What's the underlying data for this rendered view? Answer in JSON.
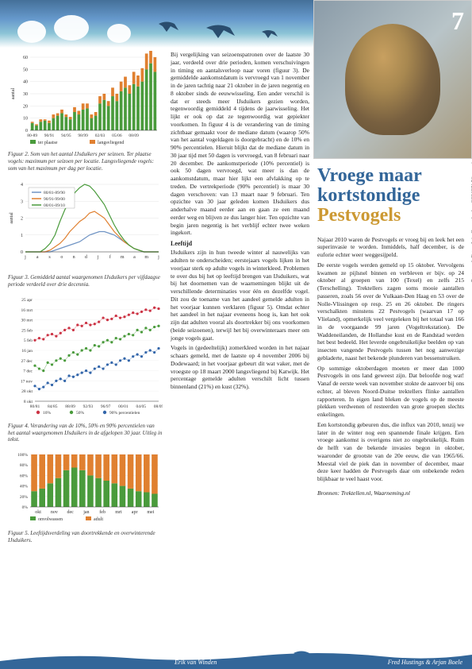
{
  "page_number": "7",
  "vertical_credit": "Pestvogel. Foto: Arie Ouwerkerk",
  "vertical_journal": "SOVON-Nieuws jaargang 23 (2010) nr 4",
  "article": {
    "title_line1": "Vroege maar",
    "title_line2": "kortstondige",
    "title_line3": "Pestvogels",
    "body1": "Najaar 2010 waren de Pestvogels er vroeg bij en leek het een superinvasie te worden. Inmiddels, half december, is de euforie echter weer weggesijpeld.",
    "body2": "De eerste vogels werden gemeld op 15 oktober. Vervolgens kwamen ze pijlsnel binnen en verbleven er bijv. op 24 oktober al groepen van 100 (Texel) en zelfs 215 (Terschelling). Trektellers zagen soms mooie aantallen passeren, zoals 56 over de Vulkaan-Den Haag en 53 over de Nolle-Vlissingen op resp. 25 en 26 oktober. De ringers verschalkten minstens 22 Pestvogels (waarvan 17 op Vlieland), opmerkelijk veel vergeleken bij het totaal van 166 in de voorgaande 99 jaren (Vogeltrekstation). De Waddeneilanden, de Hollandse kust en de Randstad werden het best bedeeld. Het leverde ongebruikelijke beelden op van insecten vangende Pestvogels tussen het nog aanwezige gebladerte, naast het bekende plunderen van bessenstruiken.",
    "body3": "Op sommige oktoberdagen moeten er meer dan 1000 Pestvogels in ons land geweest zijn. Dat beloofde nog wat! Vanaf de eerste week van november stokte de aanvoer bij ons echter, al bleven Noord-Duitse trektellers flinke aantallen rapporteren. In eigen land bleken de vogels op de meeste plekken verdwenen of resteerden van grote groepen slechts enkelingen.",
    "body4": "Een kortstondig gebeuren dus, die influx van 2010, tenzij we later in de winter nog een spannende finale krijgen. Een vroege aankomst is overigens niet zo ongebruikelijk. Ruim de helft van de bekende invasies begon in oktober, waaronder de grootste van de 20e eeuw, die van 1965/66. Meestal viel de piek dan in november of december, maar deze keer hadden de Pestvogels daar om onbekende reden blijkbaar te veel haast voor.",
    "sources": "Bronnen: Trektellen.nl, Waarneming.nl"
  },
  "mid_column": {
    "p1": "Bij vergelijking van seizoenspatronen over de laatste 30 jaar, verdeeld over drie perioden, komen verschuivingen in timing en aantalsverloop naar voren (figuur 3). De gemiddelde aankomstdatum is vervroegd van 1 november in de jaren tachtig naar 21 oktober in de jaren negentig en 8 oktober sinds de eeuwwisseling. Een ander verschil is dat er steeds meer IJsduikers gezien worden, tegenwoordig gemiddeld 4 tijdens de jaarwisseling. Het lijkt er ook op dat ze tegenwoordig wat gepiekter voorkomen. In figuur 4 is de verandering van de timing zichtbaar gemaakt voor de mediane datum (waarop 50% van het aantal vogeldagen is doorgebracht) en de 10% en 90% percentielen. Hieruit blijkt dat de mediane datum in 30 jaar tijd met 50 dagen is vervroegd, van 8 februari naar 20 december. De aankomstperiode (10% percentiel) is ook 50 dagen vervroegd, wat meer is dan de aankomstdatum, maar hier lijkt een afvlakking op te treden. De vertrekperiode (90% percentiel) is maar 30 dagen verschoven: van 13 maart naar 9 februari. Ten opzichte van 30 jaar geleden komen IJsduikers dus anderhalve maand eerder aan en gaan ze een maand eerder weg en blijven ze dus langer hier. Ten opzichte van begin jaren negentig is het verblijf echter twee weken ingekort.",
    "head1": "Leeftijd",
    "p2": "IJsduikers zijn in hun tweede winter al nauwelijks van adulten te onderscheiden; eerstejaars vogels lijken in het voorjaar sterk op adulte vogels in winterkleed. Problemen te over dus bij het op leeftijd brengen van IJsduikers, wat bij het doornemen van de waarnemingen blijkt uit de verschillende determinaties voor één en dezelfde vogel. Dit zou de toename van het aandeel gemelde adulten in het voorjaar kunnen verklaren (figuur 5). Omdat echter het aandeel in het najaar eveneens hoog is, kan het ook zijn dat adulten vooral als doortrekker bij ons voorkomen (beide seizoenen), terwijl het bij overwinteraars meer om jonge vogels gaat.",
    "p3": "Vogels in (gedeeltelijk) zomerkleed worden in het najaar schaars gemeld, met de laatste op 4 november 2006 bij Dodewaard; in het voorjaar gebeurt dit wat vaker, met de vroegste op 18 maart 2000 langsvliegend bij Katwijk. Het percentage gemelde adulten verschilt licht tussen binnenland (21%) en kust (32%)."
  },
  "fig2": {
    "caption": "Figuur 2. Som van het aantal IJsduikers per seizoen. Ter plaatse vogels: maximum per seizoen per locatie. Langsvliegende vogels: som van het maximum per dag per locatie.",
    "ylabel": "aantal",
    "ylim": [
      0,
      60
    ],
    "ytick": 10,
    "xlabels": [
      "80-89",
      "90/91",
      "94/95",
      "98/99",
      "02/03",
      "05/06",
      "08/09"
    ],
    "series": [
      {
        "name": "ter plaatse",
        "color": "#4a9b3c",
        "values": [
          6,
          4,
          7,
          8,
          6,
          10,
          12,
          14,
          11,
          9,
          15,
          13,
          17,
          18,
          10,
          12,
          22,
          25,
          20,
          28,
          24,
          32,
          35,
          30,
          38,
          36,
          40,
          50,
          55,
          48
        ]
      },
      {
        "name": "langsvliegend",
        "color": "#e08030",
        "values": [
          1,
          1,
          2,
          1,
          2,
          3,
          2,
          3,
          2,
          2,
          4,
          3,
          5,
          4,
          3,
          3,
          6,
          5,
          4,
          7,
          6,
          8,
          9,
          7,
          10,
          9,
          11,
          13,
          14,
          12
        ]
      }
    ],
    "legend": [
      {
        "label": "ter plaatse",
        "color": "#4a9b3c"
      },
      {
        "label": "langsvliegend",
        "color": "#e08030"
      }
    ]
  },
  "fig3": {
    "caption": "Figuur 3. Gemiddeld aantal waargenomen IJsduikers per vijfdaagse periode verdeeld over drie decennia.",
    "ylabel": "aantal",
    "ylim": [
      0,
      4
    ],
    "ytick": 1,
    "xlabels": [
      "j",
      "a",
      "s",
      "o",
      "n",
      "d",
      "j",
      "f",
      "m",
      "a",
      "m",
      "j"
    ],
    "legend": [
      {
        "label": "80/81-89/90",
        "color": "#7094c4"
      },
      {
        "label": "90/91-99/00",
        "color": "#e08030"
      },
      {
        "label": "00/01-09/10",
        "color": "#4a9b3c"
      }
    ],
    "lines": [
      {
        "color": "#7094c4",
        "pts": [
          0,
          0,
          0,
          0,
          0,
          0,
          0.1,
          0.2,
          0.3,
          0.4,
          0.5,
          0.6,
          0.8,
          1.0,
          1.1,
          1.2,
          1.2,
          1.1,
          1.0,
          0.8,
          0.6,
          0.4,
          0.2,
          0.1,
          0,
          0,
          0,
          0
        ]
      },
      {
        "color": "#e08030",
        "pts": [
          0,
          0,
          0,
          0,
          0,
          0.1,
          0.3,
          0.5,
          0.8,
          1.2,
          1.5,
          1.8,
          2.0,
          2.3,
          2.4,
          2.2,
          2.0,
          1.6,
          1.2,
          0.9,
          0.6,
          0.4,
          0.2,
          0.1,
          0,
          0,
          0,
          0
        ]
      },
      {
        "color": "#4a9b3c",
        "pts": [
          0,
          0,
          0,
          0,
          0.2,
          0.5,
          1.0,
          1.8,
          2.5,
          3.0,
          3.5,
          3.8,
          4.0,
          3.9,
          3.6,
          3.2,
          2.8,
          2.2,
          1.6,
          1.1,
          0.7,
          0.4,
          0.2,
          0.1,
          0,
          0,
          0,
          0
        ]
      }
    ]
  },
  "fig4": {
    "caption": "Figuur 4. Verandering van de 10%, 50% en 90% percentielen van het aantal waargenomen IJsduikers in de afgelopen 30 jaar. Uitleg in tekst.",
    "ylabels": [
      "25 apr",
      "16 mrt",
      "30 mrt",
      "25 feb",
      "5 feb",
      "16 jan",
      "27 dec",
      "7 dec",
      "17 nov",
      "28 okt",
      "8 okt"
    ],
    "xlabels": [
      "80/81",
      "84/85",
      "88/89",
      "92/93",
      "96/97",
      "00/01",
      "04/05",
      "08/09"
    ],
    "legend": [
      {
        "label": "10%",
        "color": "#cc3344"
      },
      {
        "label": "50%",
        "color": "#4a9b3c"
      },
      {
        "label": "90% percentielen",
        "color": "#3366aa"
      }
    ],
    "series": [
      {
        "color": "#cc3344",
        "pts": [
          4,
          3.8,
          3.9,
          3.5,
          3.4,
          3.6,
          3.3,
          3.0,
          2.8,
          3.0,
          2.5,
          2.6,
          2.3,
          2.5,
          2.4,
          2.2,
          1.8,
          2.0,
          1.9,
          1.6,
          1.8,
          1.7,
          1.5,
          1.3,
          1.4,
          1.2,
          1.0,
          1.1,
          0.8,
          0.9
        ]
      },
      {
        "color": "#4a9b3c",
        "pts": [
          6.5,
          6.8,
          7.0,
          6.2,
          6.4,
          6.0,
          5.8,
          6.0,
          5.5,
          5.2,
          5.4,
          5.0,
          4.8,
          5.0,
          4.5,
          4.6,
          4.2,
          4.0,
          4.2,
          3.8,
          3.9,
          3.6,
          3.4,
          3.5,
          3.0,
          3.2,
          2.8,
          3.0,
          2.7,
          2.6
        ]
      },
      {
        "color": "#3366aa",
        "pts": [
          8.5,
          8.8,
          8.6,
          8.2,
          8.4,
          8.0,
          7.8,
          8.0,
          7.5,
          7.6,
          7.4,
          7.2,
          7.0,
          7.2,
          6.8,
          6.6,
          6.8,
          6.4,
          6.2,
          6.4,
          6.0,
          5.8,
          6.0,
          5.6,
          5.4,
          5.6,
          5.2,
          5.0,
          5.2,
          4.8
        ]
      }
    ]
  },
  "fig5": {
    "caption": "Figuur 5. Leeftijdsverdeling van doortrekkende en overwinterende IJsduikers.",
    "ylim": [
      0,
      100
    ],
    "ytick": 20,
    "xlabels": [
      "okt",
      "nov",
      "dec",
      "jan",
      "feb",
      "mrt",
      "apr",
      "mei"
    ],
    "legend": [
      {
        "label": "onvolwassen",
        "color": "#4a9b3c"
      },
      {
        "label": "adult",
        "color": "#e08030"
      }
    ],
    "bars": [
      {
        "onv": 30,
        "ad": 70
      },
      {
        "onv": 35,
        "ad": 65
      },
      {
        "onv": 45,
        "ad": 55
      },
      {
        "onv": 55,
        "ad": 45
      },
      {
        "onv": 70,
        "ad": 30
      },
      {
        "onv": 75,
        "ad": 25
      },
      {
        "onv": 70,
        "ad": 30
      },
      {
        "onv": 60,
        "ad": 40
      },
      {
        "onv": 55,
        "ad": 45
      },
      {
        "onv": 50,
        "ad": 50
      },
      {
        "onv": 45,
        "ad": 55
      },
      {
        "onv": 40,
        "ad": 60
      },
      {
        "onv": 35,
        "ad": 65
      },
      {
        "onv": 30,
        "ad": 70
      },
      {
        "onv": 28,
        "ad": 72
      },
      {
        "onv": 25,
        "ad": 75
      }
    ]
  },
  "authors": {
    "left": "Erik van Winden",
    "right": "Fred Hustings & Arjan Boele"
  },
  "colors": {
    "blue_dark": "#336699",
    "blue_light": "#7db8d8",
    "gold": "#cc9933"
  }
}
